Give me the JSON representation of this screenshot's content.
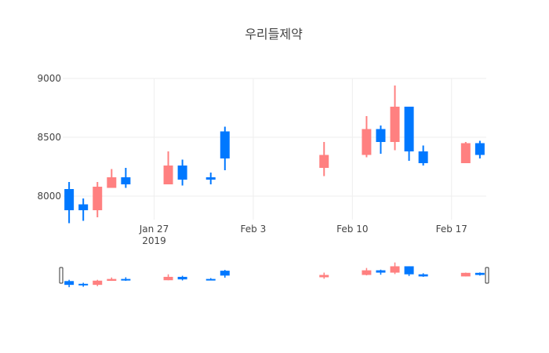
{
  "chart_data": {
    "type": "candlestick",
    "title": "우리들제약",
    "xlabel": "",
    "ylabel": "",
    "x_tick_labels": [
      {
        "date": "2019-01-27",
        "lines": [
          "Jan 27",
          "2019"
        ]
      },
      {
        "date": "2019-02-03",
        "lines": [
          "Feb 3"
        ]
      },
      {
        "date": "2019-02-10",
        "lines": [
          "Feb 10"
        ]
      },
      {
        "date": "2019-02-17",
        "lines": [
          "Feb 17"
        ]
      }
    ],
    "y_tick_labels": [
      "8000",
      "8500",
      "9000"
    ],
    "y_ticks": [
      8000,
      8500,
      9000
    ],
    "ylim": [
      7800,
      9000
    ],
    "xlim": [
      "2019-01-21",
      "2019-02-19"
    ],
    "grid": true,
    "rangeslider": true,
    "colors": {
      "increasing": "#ff8080",
      "decreasing": "#0078ff",
      "grid": "#eeeeee"
    },
    "candles": [
      {
        "date": "2019-01-21",
        "open": 8060,
        "high": 8120,
        "low": 7770,
        "close": 7880
      },
      {
        "date": "2019-01-22",
        "open": 7930,
        "high": 7980,
        "low": 7790,
        "close": 7880
      },
      {
        "date": "2019-01-23",
        "open": 7880,
        "high": 8120,
        "low": 7820,
        "close": 8080
      },
      {
        "date": "2019-01-24",
        "open": 8070,
        "high": 8230,
        "low": 8070,
        "close": 8160
      },
      {
        "date": "2019-01-25",
        "open": 8160,
        "high": 8240,
        "low": 8070,
        "close": 8100
      },
      {
        "date": "2019-01-28",
        "open": 8100,
        "high": 8380,
        "low": 8100,
        "close": 8260
      },
      {
        "date": "2019-01-29",
        "open": 8260,
        "high": 8310,
        "low": 8090,
        "close": 8140
      },
      {
        "date": "2019-01-31",
        "open": 8160,
        "high": 8200,
        "low": 8100,
        "close": 8140
      },
      {
        "date": "2019-02-01",
        "open": 8550,
        "high": 8590,
        "low": 8220,
        "close": 8320
      },
      {
        "date": "2019-02-08",
        "open": 8240,
        "high": 8460,
        "low": 8170,
        "close": 8350
      },
      {
        "date": "2019-02-11",
        "open": 8350,
        "high": 8680,
        "low": 8330,
        "close": 8570
      },
      {
        "date": "2019-02-12",
        "open": 8570,
        "high": 8600,
        "low": 8360,
        "close": 8460
      },
      {
        "date": "2019-02-13",
        "open": 8460,
        "high": 8940,
        "low": 8390,
        "close": 8760
      },
      {
        "date": "2019-02-14",
        "open": 8760,
        "high": 8760,
        "low": 8300,
        "close": 8380
      },
      {
        "date": "2019-02-15",
        "open": 8380,
        "high": 8430,
        "low": 8260,
        "close": 8280
      },
      {
        "date": "2019-02-18",
        "open": 8280,
        "high": 8460,
        "low": 8280,
        "close": 8450
      },
      {
        "date": "2019-02-19",
        "open": 8450,
        "high": 8470,
        "low": 8320,
        "close": 8350
      }
    ]
  }
}
